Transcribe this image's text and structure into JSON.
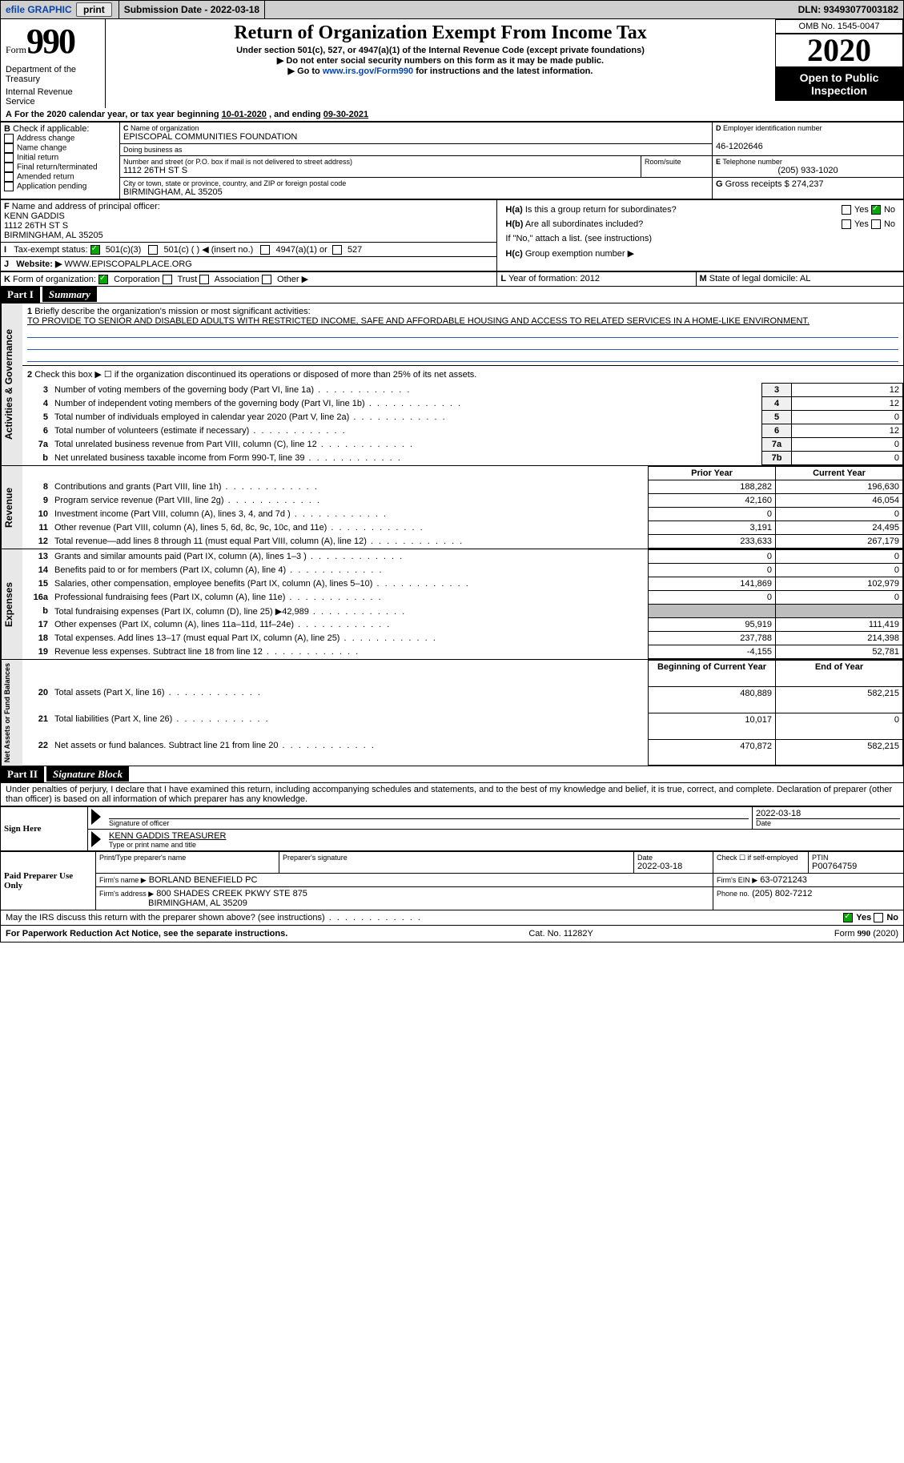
{
  "topbar": {
    "efile_label": "efile GRAPHIC",
    "print_label": "print",
    "submission_label": "Submission Date - 2022-03-18",
    "dln_label": "DLN: 93493077003182"
  },
  "header": {
    "form_word": "Form",
    "form_number": "990",
    "dept1": "Department of the Treasury",
    "dept2": "Internal Revenue Service",
    "title": "Return of Organization Exempt From Income Tax",
    "subtitle": "Under section 501(c), 527, or 4947(a)(1) of the Internal Revenue Code (except private foundations)",
    "note1": "Do not enter social security numbers on this form as it may be made public.",
    "note2_pre": "Go to ",
    "note2_link": "www.irs.gov/Form990",
    "note2_post": " for instructions and the latest information.",
    "omb": "OMB No. 1545-0047",
    "year": "2020",
    "inspect": "Open to Public Inspection"
  },
  "period": {
    "text_pre": "For the 2020 calendar year, or tax year beginning ",
    "begin": "10-01-2020",
    "mid": " , and ending ",
    "end": "09-30-2021"
  },
  "boxB": {
    "label": "Check if applicable:",
    "items": [
      "Address change",
      "Name change",
      "Initial return",
      "Final return/terminated",
      "Amended return",
      "Application pending"
    ],
    "checked": [
      false,
      false,
      false,
      false,
      false,
      false
    ]
  },
  "boxC": {
    "label": "Name of organization",
    "name": "EPISCOPAL COMMUNITIES FOUNDATION",
    "dba_label": "Doing business as",
    "dba": "",
    "addr_label": "Number and street (or P.O. box if mail is not delivered to street address)",
    "room_label": "Room/suite",
    "addr": "1112 26TH ST S",
    "city_label": "City or town, state or province, country, and ZIP or foreign postal code",
    "city": "BIRMINGHAM, AL  35205"
  },
  "boxD": {
    "label": "Employer identification number",
    "value": "46-1202646"
  },
  "boxE": {
    "label": "Telephone number",
    "value": "(205) 933-1020"
  },
  "boxG": {
    "label": "Gross receipts $",
    "value": "274,237"
  },
  "boxF": {
    "label": "Name and address of principal officer:",
    "name": "KENN GADDIS",
    "addr1": "1112 26TH ST S",
    "addr2": "BIRMINGHAM, AL  35205"
  },
  "boxH": {
    "ha_label": "Is this a group return for subordinates?",
    "ha_yes": false,
    "ha_no": true,
    "hb_label": "Are all subordinates included?",
    "hb_yes": false,
    "hb_no": false,
    "hb_note": "If \"No,\" attach a list. (see instructions)",
    "hc_label": "Group exemption number ▶"
  },
  "boxI": {
    "label": "Tax-exempt status:",
    "opt1": "501(c)(3)",
    "opt1_checked": true,
    "opt2": "501(c) (   ) ◀ (insert no.)",
    "opt3": "4947(a)(1) or",
    "opt4": "527"
  },
  "boxJ": {
    "label": "Website: ▶",
    "value": "WWW.EPISCOPALPLACE.ORG"
  },
  "boxK": {
    "label": "Form of organization:",
    "corp": "Corporation",
    "corp_checked": true,
    "trust": "Trust",
    "assoc": "Association",
    "other": "Other ▶"
  },
  "boxL": {
    "label": "Year of formation:",
    "value": "2012"
  },
  "boxM": {
    "label": "State of legal domicile:",
    "value": "AL"
  },
  "part1": {
    "header": "Part I",
    "title": "Summary",
    "q1_label": "Briefly describe the organization's mission or most significant activities:",
    "q1_text": "TO PROVIDE TO SENIOR AND DISABLED ADULTS WITH RESTRICTED INCOME, SAFE AND AFFORDABLE HOUSING AND ACCESS TO RELATED SERVICES IN A HOME-LIKE ENVIRONMENT.",
    "q2": "Check this box ▶ ☐ if the organization discontinued its operations or disposed of more than 25% of its net assets.",
    "gov_label": "Activities & Governance",
    "rev_label": "Revenue",
    "exp_label": "Expenses",
    "net_label": "Net Assets or Fund Balances",
    "lines_gov": [
      {
        "n": "3",
        "d": "Number of voting members of the governing body (Part VI, line 1a)",
        "box": "3",
        "v": "12"
      },
      {
        "n": "4",
        "d": "Number of independent voting members of the governing body (Part VI, line 1b)",
        "box": "4",
        "v": "12"
      },
      {
        "n": "5",
        "d": "Total number of individuals employed in calendar year 2020 (Part V, line 2a)",
        "box": "5",
        "v": "0"
      },
      {
        "n": "6",
        "d": "Total number of volunteers (estimate if necessary)",
        "box": "6",
        "v": "12"
      },
      {
        "n": "7a",
        "d": "Total unrelated business revenue from Part VIII, column (C), line 12",
        "box": "7a",
        "v": "0"
      },
      {
        "n": "b",
        "d": "Net unrelated business taxable income from Form 990-T, line 39",
        "box": "7b",
        "v": "0"
      }
    ],
    "col_prior": "Prior Year",
    "col_current": "Current Year",
    "lines_rev": [
      {
        "n": "8",
        "d": "Contributions and grants (Part VIII, line 1h)",
        "p": "188,282",
        "c": "196,630"
      },
      {
        "n": "9",
        "d": "Program service revenue (Part VIII, line 2g)",
        "p": "42,160",
        "c": "46,054"
      },
      {
        "n": "10",
        "d": "Investment income (Part VIII, column (A), lines 3, 4, and 7d )",
        "p": "0",
        "c": "0"
      },
      {
        "n": "11",
        "d": "Other revenue (Part VIII, column (A), lines 5, 6d, 8c, 9c, 10c, and 11e)",
        "p": "3,191",
        "c": "24,495"
      },
      {
        "n": "12",
        "d": "Total revenue—add lines 8 through 11 (must equal Part VIII, column (A), line 12)",
        "p": "233,633",
        "c": "267,179"
      }
    ],
    "lines_exp": [
      {
        "n": "13",
        "d": "Grants and similar amounts paid (Part IX, column (A), lines 1–3 )",
        "p": "0",
        "c": "0"
      },
      {
        "n": "14",
        "d": "Benefits paid to or for members (Part IX, column (A), line 4)",
        "p": "0",
        "c": "0"
      },
      {
        "n": "15",
        "d": "Salaries, other compensation, employee benefits (Part IX, column (A), lines 5–10)",
        "p": "141,869",
        "c": "102,979"
      },
      {
        "n": "16a",
        "d": "Professional fundraising fees (Part IX, column (A), line 11e)",
        "p": "0",
        "c": "0"
      },
      {
        "n": "b",
        "d": "Total fundraising expenses (Part IX, column (D), line 25) ▶42,989",
        "p": "SHADE",
        "c": "SHADE"
      },
      {
        "n": "17",
        "d": "Other expenses (Part IX, column (A), lines 11a–11d, 11f–24e)",
        "p": "95,919",
        "c": "111,419"
      },
      {
        "n": "18",
        "d": "Total expenses. Add lines 13–17 (must equal Part IX, column (A), line 25)",
        "p": "237,788",
        "c": "214,398"
      },
      {
        "n": "19",
        "d": "Revenue less expenses. Subtract line 18 from line 12",
        "p": "-4,155",
        "c": "52,781"
      }
    ],
    "col_begin": "Beginning of Current Year",
    "col_end": "End of Year",
    "lines_net": [
      {
        "n": "20",
        "d": "Total assets (Part X, line 16)",
        "p": "480,889",
        "c": "582,215"
      },
      {
        "n": "21",
        "d": "Total liabilities (Part X, line 26)",
        "p": "10,017",
        "c": "0"
      },
      {
        "n": "22",
        "d": "Net assets or fund balances. Subtract line 21 from line 20",
        "p": "470,872",
        "c": "582,215"
      }
    ]
  },
  "part2": {
    "header": "Part II",
    "title": "Signature Block",
    "jurat": "Under penalties of perjury, I declare that I have examined this return, including accompanying schedules and statements, and to the best of my knowledge and belief, it is true, correct, and complete. Declaration of preparer (other than officer) is based on all information of which preparer has any knowledge.",
    "sign_here": "Sign Here",
    "sig_officer_label": "Signature of officer",
    "sig_date": "2022-03-18",
    "date_label": "Date",
    "officer_name": "KENN GADDIS TREASURER",
    "officer_name_label": "Type or print name and title",
    "paid_label": "Paid Preparer Use Only",
    "prep_name_label": "Print/Type preparer's name",
    "prep_sig_label": "Preparer's signature",
    "prep_date_label": "Date",
    "prep_date": "2022-03-18",
    "self_emp_label": "Check ☐ if self-employed",
    "ptin_label": "PTIN",
    "ptin": "P00764759",
    "firm_name_label": "Firm's name   ▶",
    "firm_name": "BORLAND BENEFIELD PC",
    "firm_ein_label": "Firm's EIN ▶",
    "firm_ein": "63-0721243",
    "firm_addr_label": "Firm's address ▶",
    "firm_addr1": "800 SHADES CREEK PKWY STE 875",
    "firm_addr2": "BIRMINGHAM, AL  35209",
    "phone_label": "Phone no.",
    "phone": "(205) 802-7212",
    "discuss": "May the IRS discuss this return with the preparer shown above? (see instructions)",
    "discuss_yes": true
  },
  "footer": {
    "paperwork": "For Paperwork Reduction Act Notice, see the separate instructions.",
    "cat": "Cat. No. 11282Y",
    "form": "Form 990 (2020)"
  },
  "colors": {
    "link": "#0645ad",
    "shade": "#bdbdbd",
    "vlabel_bg": "#e8e8e8"
  }
}
